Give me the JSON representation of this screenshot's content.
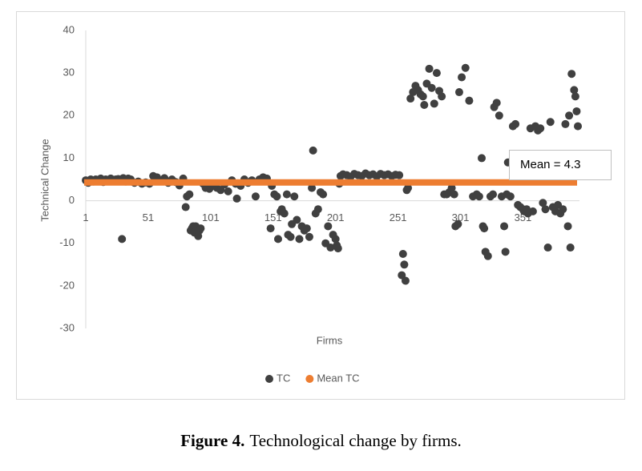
{
  "chart_data": {
    "type": "scatter",
    "ylabel": "Technical Change",
    "xlabel": "Firms",
    "annotation": "Mean = 4.3",
    "xlim": [
      1,
      395
    ],
    "ylim": [
      -30,
      40
    ],
    "xticks": [
      1,
      51,
      101,
      151,
      201,
      251,
      301,
      351
    ],
    "yticks": [
      40,
      30,
      20,
      10,
      0,
      -10,
      -20,
      -30
    ],
    "legend": "bottom",
    "series": [
      {
        "name": "TC",
        "color": "#404040",
        "x": [
          1,
          3,
          5,
          7,
          9,
          11,
          13,
          15,
          17,
          19,
          21,
          23,
          25,
          27,
          29,
          30,
          31,
          33,
          35,
          37,
          40,
          43,
          46,
          49,
          52,
          55,
          58,
          61,
          64,
          67,
          70,
          73,
          76,
          79,
          81,
          82,
          84,
          85,
          86,
          87,
          88,
          89,
          90,
          91,
          92,
          93,
          95,
          97,
          100,
          103,
          106,
          109,
          112,
          115,
          118,
          121,
          122,
          125,
          128,
          131,
          134,
          137,
          140,
          143,
          146,
          149,
          150,
          152,
          154,
          155,
          157,
          158,
          160,
          162,
          163,
          165,
          166,
          168,
          170,
          172,
          174,
          176,
          178,
          180,
          182,
          183,
          185,
          187,
          189,
          191,
          193,
          195,
          197,
          199,
          201,
          202,
          203,
          204,
          205,
          207,
          210,
          213,
          216,
          219,
          222,
          225,
          228,
          231,
          234,
          237,
          240,
          243,
          246,
          249,
          252,
          254,
          255,
          256,
          257,
          258,
          259,
          261,
          263,
          265,
          267,
          269,
          271,
          272,
          274,
          276,
          278,
          280,
          282,
          284,
          286,
          288,
          290,
          292,
          294,
          296,
          297,
          299,
          300,
          302,
          305,
          308,
          311,
          314,
          316,
          318,
          319,
          320,
          321,
          323,
          325,
          327,
          328,
          330,
          332,
          334,
          336,
          337,
          338,
          339,
          341,
          343,
          345,
          347,
          349,
          351,
          352,
          354,
          355,
          357,
          359,
          361,
          363,
          365,
          367,
          369,
          371,
          373,
          375,
          377,
          379,
          381,
          383,
          385,
          387,
          388,
          389,
          390,
          392,
          393,
          394,
          395
        ],
        "values": [
          4.8,
          4.2,
          5,
          4.5,
          5,
          4.8,
          5.2,
          4.4,
          5,
          4.6,
          5.2,
          4.7,
          5,
          5.1,
          4.8,
          -9,
          5.3,
          4.5,
          5.2,
          5,
          4.2,
          4.5,
          4,
          4.3,
          4,
          5.8,
          5.5,
          4.6,
          5.3,
          4.2,
          5,
          4.4,
          3.6,
          5.2,
          -1.5,
          1,
          1.5,
          -7,
          -6.5,
          -6,
          -7.5,
          -6,
          -7,
          -8.3,
          -7,
          -6.5,
          4,
          3,
          2.8,
          3.5,
          3,
          2.5,
          3.8,
          2.2,
          4.8,
          4,
          0.5,
          3.5,
          5,
          4.2,
          4.8,
          1,
          5,
          5.5,
          5.2,
          -6.5,
          3.5,
          1.5,
          1,
          -9,
          -2.5,
          -2,
          -3,
          1.5,
          -8,
          -8.5,
          -5.5,
          1,
          -4.5,
          -9,
          -6,
          -7,
          -6.5,
          -8.5,
          3,
          11.8,
          -3,
          -2,
          2,
          1.5,
          -10,
          -6,
          -11,
          -8,
          -9,
          -10.5,
          -11.2,
          4,
          5.8,
          6.2,
          6,
          5.6,
          6.3,
          6,
          5.8,
          6.4,
          6,
          6.2,
          5.7,
          6.3,
          6,
          6.2,
          5.8,
          6.1,
          6,
          -17.5,
          -12.5,
          -15,
          -18.8,
          2.5,
          3,
          24,
          25.5,
          27,
          26,
          25,
          24.5,
          22.5,
          27.5,
          31,
          26.5,
          22.8,
          30,
          25.8,
          24.5,
          1.5,
          1.5,
          2,
          3,
          1.5,
          -6,
          -5.5,
          25.5,
          29,
          31.2,
          23.5,
          1,
          1.5,
          1,
          10,
          -6,
          -6.5,
          -12,
          -13,
          1,
          1.5,
          22,
          23,
          20,
          1,
          -6,
          -12,
          1.5,
          9,
          1,
          17.5,
          18,
          -1,
          -1.5,
          -2,
          -2.5,
          -2,
          -3,
          17,
          -2.5,
          17.5,
          16.5,
          17,
          -0.5,
          -2,
          -11,
          18.5,
          -1.5,
          -2.5,
          -1,
          -3,
          -2,
          18,
          -6,
          20,
          -11,
          29.8,
          26,
          24.5,
          21,
          17.5
        ]
      },
      {
        "name": "Mean TC",
        "color": "#ed7d31",
        "value": 4.3
      }
    ]
  },
  "caption": {
    "label": "Figure 4.",
    "text": "Technological change by firms."
  }
}
